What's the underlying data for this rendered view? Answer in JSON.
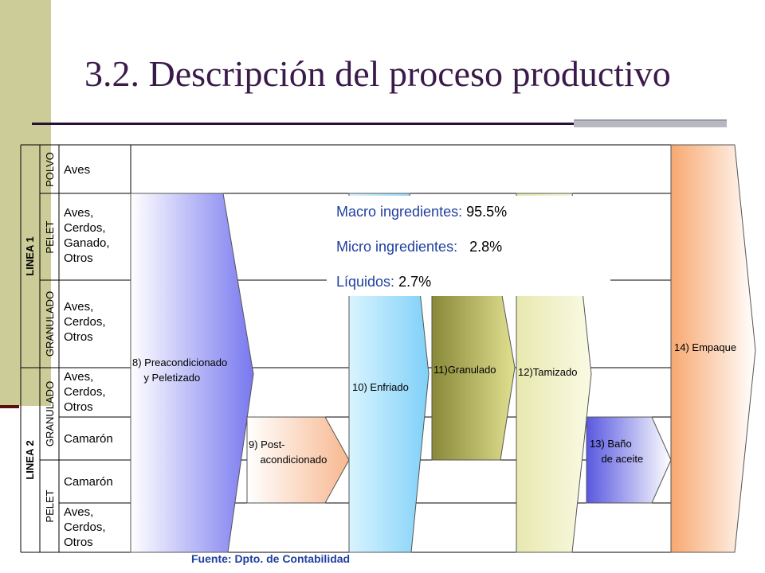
{
  "title": "3.2. Descripción del proceso productivo",
  "lines": [
    {
      "label": "LINEA 1",
      "groups": [
        {
          "type": "POLVO",
          "rows": [
            [
              "Aves"
            ]
          ]
        },
        {
          "type": "PELET",
          "rows": [
            [
              "Aves,",
              "Cerdos,",
              "Ganado,",
              "Otros"
            ]
          ]
        },
        {
          "type": "GRANULADO",
          "rows": [
            [
              "Aves,",
              "Cerdos,",
              "Otros"
            ]
          ]
        }
      ]
    },
    {
      "label": "LINEA 2",
      "groups": [
        {
          "type": "GRANULADO",
          "rows": [
            [
              "Aves,",
              "Cerdos,",
              "Otros"
            ],
            [
              "Camarón"
            ]
          ]
        },
        {
          "type": "PELET",
          "rows": [
            [
              "Camarón"
            ],
            [
              "Aves,",
              "Cerdos,",
              "Otros"
            ]
          ]
        }
      ]
    }
  ],
  "processes": [
    {
      "lines": [
        "8) Preacondicionado",
        "    y Peletizado"
      ],
      "color": "#7878f0"
    },
    {
      "lines": [
        "9) Post-",
        "    acondicionado"
      ],
      "color": "#f8b890"
    },
    {
      "lines": [
        "10) Enfriado"
      ],
      "color": "#80d0f8"
    },
    {
      "lines": [
        "11)Granulado"
      ],
      "color": "#b8b860"
    },
    {
      "lines": [
        "12)Tamizado"
      ],
      "color": "#e8e8b0"
    },
    {
      "lines": [
        "13) Baño",
        "    de aceite"
      ],
      "color": "#7070e8"
    },
    {
      "lines": [
        "14) Empaque"
      ],
      "color": "#f8a870"
    }
  ],
  "ingredients": [
    {
      "label": "Macro ingredientes:",
      "value": "95.5%"
    },
    {
      "label": "Micro ingredientes:",
      "value": "  2.8%"
    },
    {
      "label": "Líquidos:",
      "value": "2.7%"
    }
  ],
  "source": "Fuente: Dpto. de Contabilidad"
}
